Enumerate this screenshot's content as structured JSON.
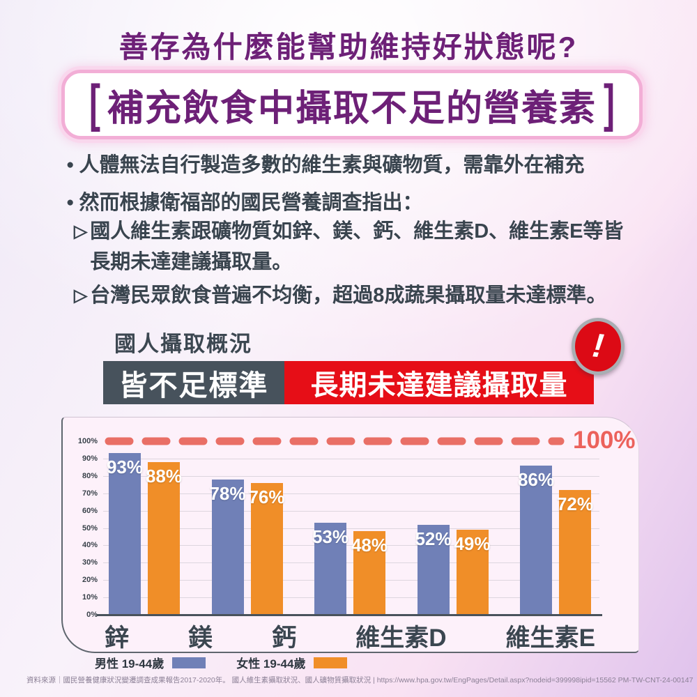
{
  "title": "善存為什麼能幫助維持好狀態呢?",
  "highlight_box": {
    "open": "[",
    "text": "補充飲食中攝取不足的營養素",
    "close": "]"
  },
  "bullets": [
    {
      "marker": "●",
      "text": "人體無法自行製造多數的維生素與礦物質，需靠外在補充"
    },
    {
      "marker": "●",
      "text": "然而根據衛福部的國民營養調查指出："
    }
  ],
  "sub_points": [
    {
      "marker": "▷",
      "lines": [
        "國人維生素跟礦物質如鋅、鎂、鈣、維生素D、維生素E等皆",
        "長期未達建議攝取量。"
      ]
    },
    {
      "marker": "▷",
      "lines": [
        "台灣民眾飲食普遍不均衡，超過8成蔬果攝取量未達標準。"
      ]
    }
  ],
  "section": {
    "kicker": "國人攝取概況",
    "banner_left": "皆不足標準",
    "banner_right": "長期未達建議攝取量",
    "alert_icon": "!"
  },
  "chart_data": {
    "type": "bar",
    "categories": [
      "鋅",
      "鎂",
      "鈣",
      "維生素D",
      "維生素E"
    ],
    "series": [
      {
        "name": "男性 19-44歲",
        "color": "#7080b7",
        "values": [
          93,
          78,
          53,
          52,
          86
        ]
      },
      {
        "name": "女性 19-44歲",
        "color": "#f08e28",
        "values": [
          88,
          76,
          48,
          49,
          72
        ]
      }
    ],
    "value_suffix": "%",
    "yticks": [
      "100%",
      "90%",
      "80%",
      "70%",
      "60%",
      "50%",
      "40%",
      "30%",
      "20%",
      "10%",
      "0%"
    ],
    "ylim": [
      0,
      100
    ],
    "grid": true,
    "legend_position": "bottom",
    "reference_line": {
      "value": 100,
      "label": "100%",
      "style": "dashed",
      "color": "#e96f66"
    }
  },
  "colors": {
    "title_purple": "#6d2077",
    "banner_left_bg": "#47525c",
    "banner_right_bg": "#e60e17",
    "alert_red": "#dc0a15",
    "panel_bg": "#fdf1fa",
    "axis": "#49525b"
  },
  "footer": {
    "source": "資料來源｜國民營養健康狀況變遷調查成果報告2017-2020年。 國人維生素攝取狀況、國人礦物質攝取狀況 | https://www.hpa.gov.tw/EngPages/Detail.aspx?nodeid=399998ipid=15562 PM-TW-CNT-24-00147"
  }
}
